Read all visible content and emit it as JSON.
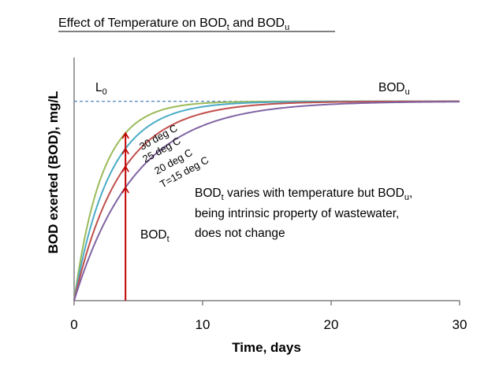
{
  "chart_data": {
    "type": "line",
    "title": "Effect of Temperature on BOD",
    "title_sub_1": "t",
    "title_mid": " and BOD",
    "title_sub_2": "u",
    "xlabel": "Time, days",
    "ylabel": "BOD exerted (BOD), mg/L",
    "xlim": [
      0,
      30
    ],
    "ylim": [
      0,
      1.22
    ],
    "xticks": [
      0,
      10,
      20,
      30
    ],
    "x_tick_labels": [
      "0",
      "10",
      "20",
      "30"
    ],
    "ultimate_bod": 1.0,
    "series": [
      {
        "name": "30 deg C",
        "label": "30 deg C",
        "k_per_day": 0.46,
        "color": "#9bbb59"
      },
      {
        "name": "25 deg C",
        "label": "25 deg C",
        "k_per_day": 0.36,
        "color": "#4bacc6"
      },
      {
        "name": "20 deg C",
        "label": "20 deg C",
        "k_per_day": 0.28,
        "color": "#c0504d"
      },
      {
        "name": "T=15 deg C",
        "label": "T=15 deg C",
        "k_per_day": 0.21,
        "color": "#8064a2"
      }
    ],
    "bod_t_marker_day": 4,
    "annotations": {
      "l0_main": "L",
      "l0_sub": "0",
      "bodu_main": "BOD",
      "bodu_sub": "u",
      "bodt_main": "BOD",
      "bodt_sub": "t",
      "note_line1_a": "BOD",
      "note_line1_sub_a": "t",
      "note_line1_b": " varies with temperature but BOD",
      "note_line1_sub_b": "u",
      "note_line1_c": ",",
      "note_line2": "being intrinsic property of wastewater,",
      "note_line3": "does not change"
    },
    "colors": {
      "axis": "#808080",
      "dashed": "#4f81bd",
      "marker": "#c00000"
    }
  }
}
